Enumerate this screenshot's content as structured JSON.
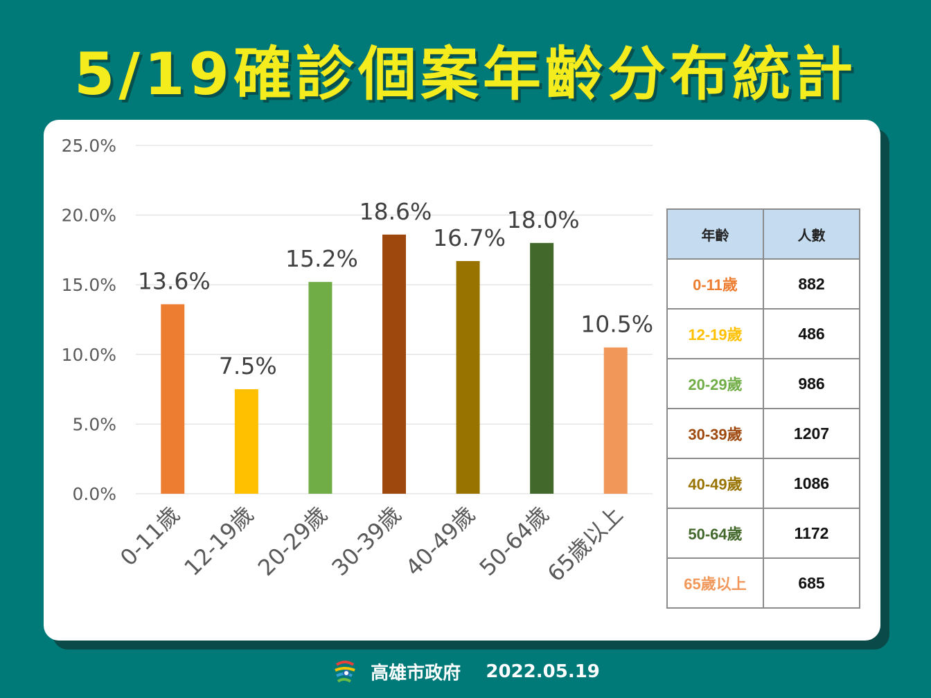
{
  "header": {
    "title": "5/19確診個案年齡分布統計"
  },
  "colors": {
    "background": "#007a78",
    "title": "#f5ec1e",
    "grid": "#d9d9d9",
    "axis_text": "#595959"
  },
  "chart_data": {
    "type": "bar",
    "categories": [
      "0-11歲",
      "12-19歲",
      "20-29歲",
      "30-39歲",
      "40-49歲",
      "50-64歲",
      "65歲以上"
    ],
    "values": [
      13.6,
      7.5,
      15.2,
      18.6,
      16.7,
      18.0,
      10.5
    ],
    "value_labels": [
      "13.6%",
      "7.5%",
      "15.2%",
      "18.6%",
      "16.7%",
      "18.0%",
      "10.5%"
    ],
    "bar_colors": [
      "#ed7d31",
      "#ffc000",
      "#70ad47",
      "#9e480e",
      "#997300",
      "#43682b",
      "#f1975a"
    ],
    "ylim": [
      0,
      25
    ],
    "yticks": [
      "0.0%",
      "5.0%",
      "10.0%",
      "15.0%",
      "20.0%",
      "25.0%"
    ],
    "grid": true,
    "xlabel": "",
    "ylabel": ""
  },
  "table": {
    "headers": [
      "年齡",
      "人數"
    ],
    "rows": [
      {
        "age": "0-11歲",
        "count": "882",
        "color": "#ed7d31"
      },
      {
        "age": "12-19歲",
        "count": "486",
        "color": "#ffc000"
      },
      {
        "age": "20-29歲",
        "count": "986",
        "color": "#70ad47"
      },
      {
        "age": "30-39歲",
        "count": "1207",
        "color": "#9e480e"
      },
      {
        "age": "40-49歲",
        "count": "1086",
        "color": "#997300"
      },
      {
        "age": "50-64歲",
        "count": "1172",
        "color": "#43682b"
      },
      {
        "age": "65歲以上",
        "count": "685",
        "color": "#f1975a"
      }
    ]
  },
  "footer": {
    "org": "高雄市政府",
    "date": "2022.05.19",
    "logo_icon": "kaohsiung-city-logo-icon"
  }
}
